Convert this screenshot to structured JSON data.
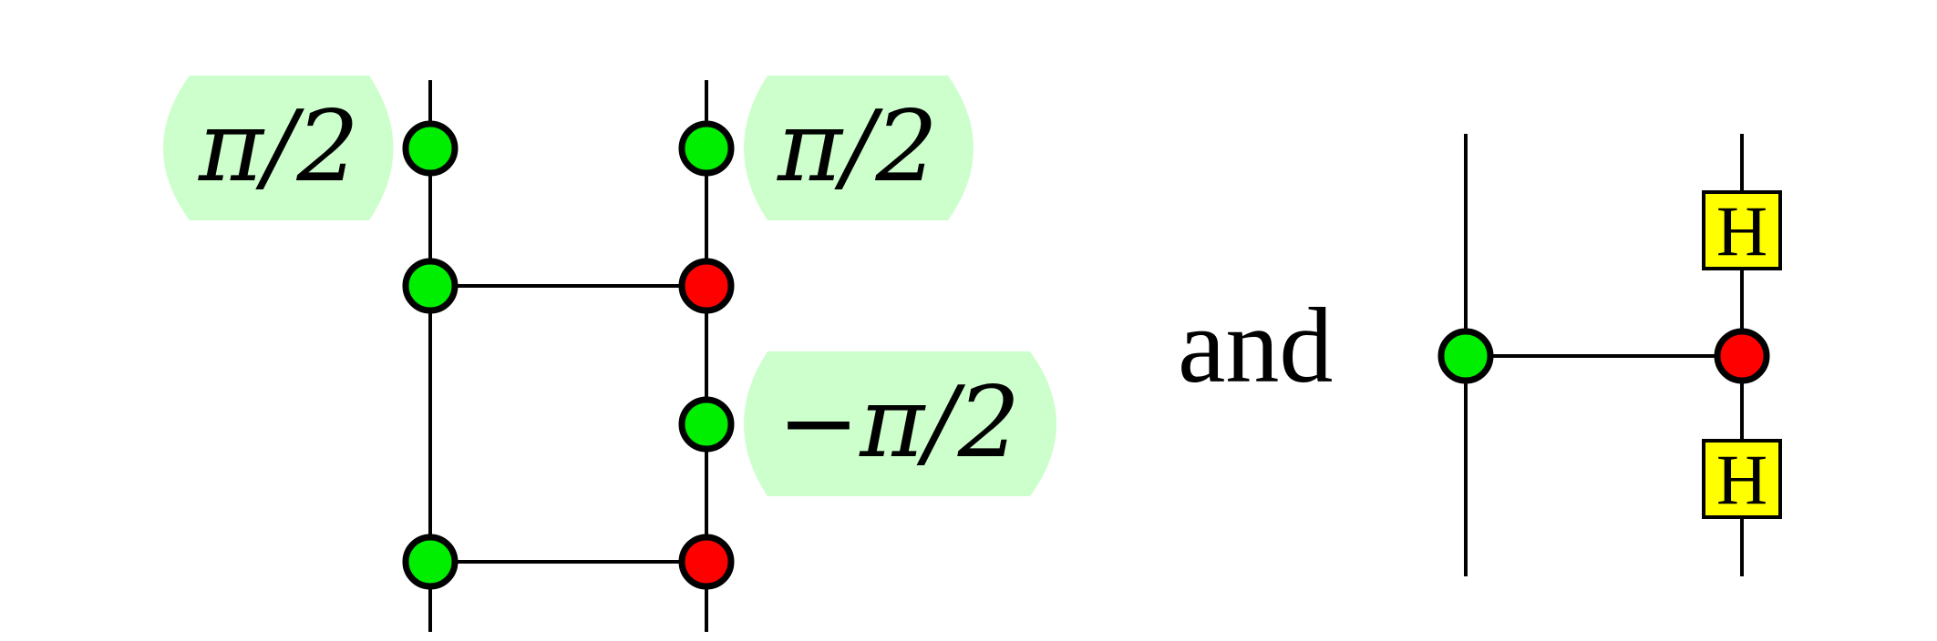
{
  "colors": {
    "z_spider": "#00ee00",
    "x_spider": "#ff0000",
    "phase_bubble": "#ccffcc",
    "hadamard": "#ffff00"
  },
  "left_diagram": {
    "phase_top_left": "π/2",
    "phase_top_right": "π/2",
    "phase_middle_right": "−π/2"
  },
  "conjunction": "and",
  "right_diagram": {
    "hadamard_top": "H",
    "hadamard_bottom": "H"
  }
}
